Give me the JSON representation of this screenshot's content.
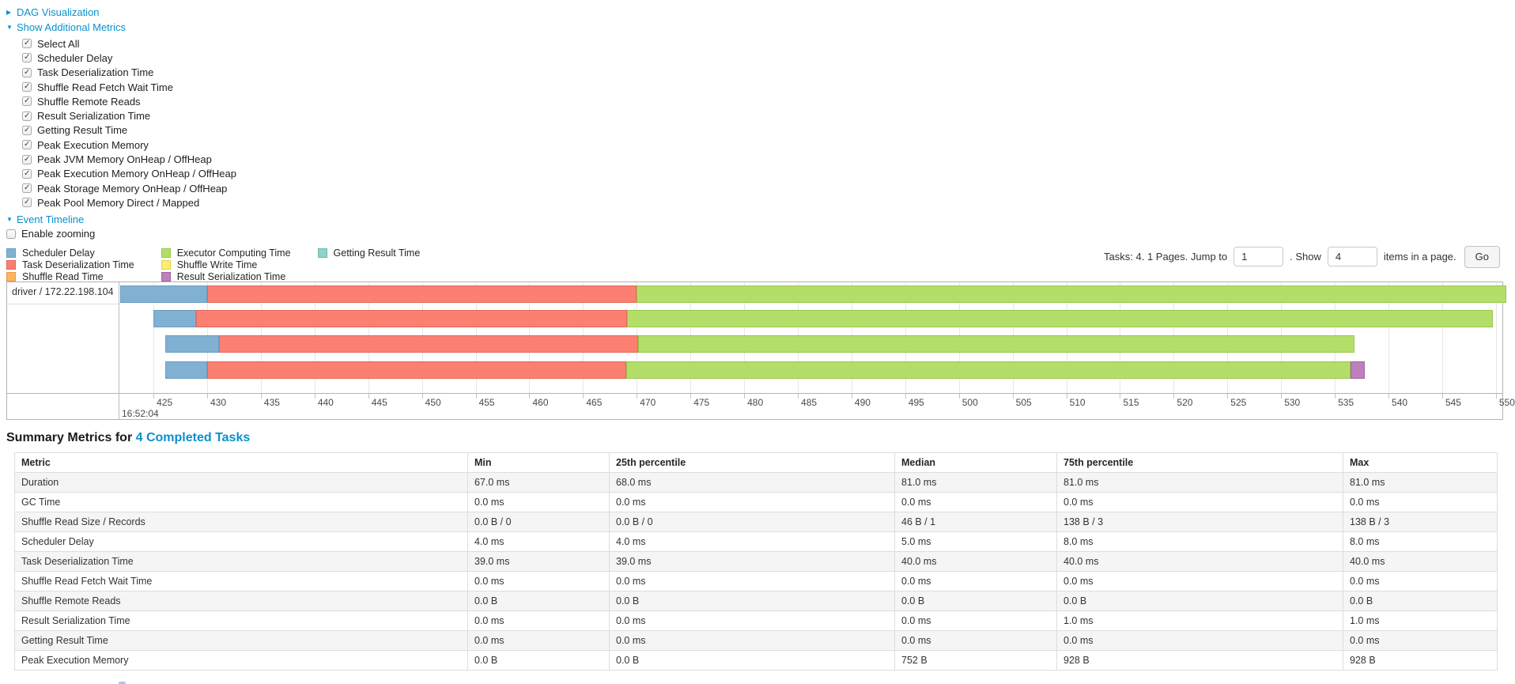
{
  "links": {
    "dag_visualization": "DAG Visualization",
    "show_additional_metrics": "Show Additional Metrics",
    "event_timeline": "Event Timeline"
  },
  "metrics_panel": {
    "items": [
      {
        "label": "Select All",
        "checked": true
      },
      {
        "label": "Scheduler Delay",
        "checked": true
      },
      {
        "label": "Task Deserialization Time",
        "checked": true
      },
      {
        "label": "Shuffle Read Fetch Wait Time",
        "checked": true
      },
      {
        "label": "Shuffle Remote Reads",
        "checked": true
      },
      {
        "label": "Result Serialization Time",
        "checked": true
      },
      {
        "label": "Getting Result Time",
        "checked": true
      },
      {
        "label": "Peak Execution Memory",
        "checked": true
      },
      {
        "label": "Peak JVM Memory OnHeap / OffHeap",
        "checked": true
      },
      {
        "label": "Peak Execution Memory OnHeap / OffHeap",
        "checked": true
      },
      {
        "label": "Peak Storage Memory OnHeap / OffHeap",
        "checked": true
      },
      {
        "label": "Peak Pool Memory Direct / Mapped",
        "checked": true
      }
    ]
  },
  "enable_zooming": {
    "label": "Enable zooming",
    "checked": false
  },
  "colors": {
    "scheduler_delay": {
      "fill": "#80B1D3",
      "border": "#6b9dc1"
    },
    "task_deserialization": {
      "fill": "#FB8072",
      "border": "#e4685c"
    },
    "shuffle_read": {
      "fill": "#FDB462",
      "border": "#e89a48"
    },
    "executor_computing": {
      "fill": "#B3DE69",
      "border": "#9ac84e"
    },
    "shuffle_write": {
      "fill": "#FFED6F",
      "border": "#e0cf52"
    },
    "result_serialization": {
      "fill": "#BC80BD",
      "border": "#a365a5"
    },
    "getting_result": {
      "fill": "#8DD3C7",
      "border": "#72b8ac"
    },
    "link_blue": "#0b90cc"
  },
  "legend": [
    {
      "key": "scheduler_delay",
      "label": "Scheduler Delay"
    },
    {
      "key": "task_deserialization",
      "label": "Task Deserialization Time"
    },
    {
      "key": "shuffle_read",
      "label": "Shuffle Read Time"
    },
    {
      "key": "executor_computing",
      "label": "Executor Computing Time"
    },
    {
      "key": "shuffle_write",
      "label": "Shuffle Write Time"
    },
    {
      "key": "result_serialization",
      "label": "Result Serialization Time"
    },
    {
      "key": "getting_result",
      "label": "Getting Result Time"
    }
  ],
  "pagination": {
    "tasks_text": "Tasks: 4. 1 Pages. Jump to",
    "jump_value": "1",
    "show_text": ". Show",
    "show_value": "4",
    "items_text": "items in a page.",
    "go_label": "Go"
  },
  "chart_data": {
    "type": "timeline",
    "group_label": "driver / 172.22.198.104",
    "axis": {
      "min": 421.9,
      "max": 550.6,
      "tick_start": 425,
      "tick_end": 550,
      "tick_step": 5,
      "sub_label": "16:52:04",
      "unit": "milliseconds within second 16:52:04"
    },
    "row_offsets": [
      4,
      35,
      67,
      100
    ],
    "tasks": [
      {
        "segments": [
          [
            "scheduler_delay",
            421.9,
            430.0
          ],
          [
            "task_deserialization",
            430.0,
            470.0
          ],
          [
            "executor_computing",
            470.0,
            551.0
          ]
        ]
      },
      {
        "segments": [
          [
            "scheduler_delay",
            425.0,
            429.0
          ],
          [
            "task_deserialization",
            429.0,
            469.1
          ],
          [
            "executor_computing",
            469.1,
            549.7
          ]
        ]
      },
      {
        "segments": [
          [
            "scheduler_delay",
            426.1,
            431.1
          ],
          [
            "task_deserialization",
            431.1,
            470.1
          ],
          [
            "executor_computing",
            470.1,
            536.8
          ]
        ]
      },
      {
        "segments": [
          [
            "scheduler_delay",
            426.1,
            430.0
          ],
          [
            "task_deserialization",
            430.0,
            469.0
          ],
          [
            "executor_computing",
            469.0,
            536.5
          ],
          [
            "result_serialization",
            536.5,
            537.8
          ]
        ]
      }
    ]
  },
  "summary": {
    "title_prefix": "Summary Metrics for ",
    "title_link": "4 Completed Tasks"
  },
  "table": {
    "headers": [
      "Metric",
      "Min",
      "25th percentile",
      "Median",
      "75th percentile",
      "Max"
    ],
    "rows": [
      [
        "Duration",
        "67.0 ms",
        "68.0 ms",
        "81.0 ms",
        "81.0 ms",
        "81.0 ms"
      ],
      [
        "GC Time",
        "0.0 ms",
        "0.0 ms",
        "0.0 ms",
        "0.0 ms",
        "0.0 ms"
      ],
      [
        "Shuffle Read Size / Records",
        "0.0 B / 0",
        "0.0 B / 0",
        "46 B / 1",
        "138 B / 3",
        "138 B / 3"
      ],
      [
        "Scheduler Delay",
        "4.0 ms",
        "4.0 ms",
        "5.0 ms",
        "8.0 ms",
        "8.0 ms"
      ],
      [
        "Task Deserialization Time",
        "39.0 ms",
        "39.0 ms",
        "40.0 ms",
        "40.0 ms",
        "40.0 ms"
      ],
      [
        "Shuffle Read Fetch Wait Time",
        "0.0 ms",
        "0.0 ms",
        "0.0 ms",
        "0.0 ms",
        "0.0 ms"
      ],
      [
        "Shuffle Remote Reads",
        "0.0 B",
        "0.0 B",
        "0.0 B",
        "0.0 B",
        "0.0 B"
      ],
      [
        "Result Serialization Time",
        "0.0 ms",
        "0.0 ms",
        "0.0 ms",
        "1.0 ms",
        "1.0 ms"
      ],
      [
        "Getting Result Time",
        "0.0 ms",
        "0.0 ms",
        "0.0 ms",
        "0.0 ms",
        "0.0 ms"
      ],
      [
        "Peak Execution Memory",
        "0.0 B",
        "0.0 B",
        "752 B",
        "928 B",
        "928 B"
      ]
    ]
  }
}
